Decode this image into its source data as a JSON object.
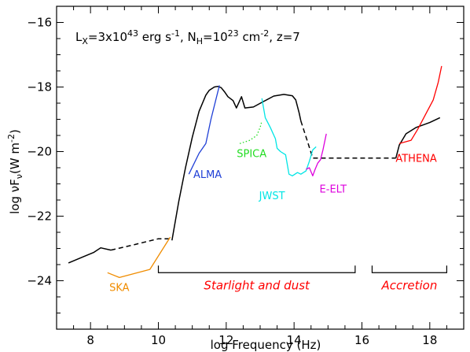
{
  "chart_data": {
    "type": "line",
    "xlabel_text": "log Frequency (Hz)",
    "ylabel_text": "log νF",
    "ylabel_sub": "ν",
    "ylabel_unit": "(W m",
    "ylabel_unit_sup": "-2",
    "ylabel_close": ")",
    "xlim": [
      7.0,
      19.0
    ],
    "ylim": [
      -25.5,
      -15.5
    ],
    "x_ticks": [
      8,
      10,
      12,
      14,
      16,
      18
    ],
    "y_ticks": [
      -24,
      -22,
      -20,
      -18,
      -16
    ],
    "annotation": {
      "lx": "L",
      "lx_sub": "X",
      "lx_val": "=3x10",
      "lx_exp": "43",
      "lx_unit": " erg s",
      "lx_unit_exp": "-1",
      "nh": ", N",
      "nh_sub": "H",
      "nh_val": "=10",
      "nh_exp": "23",
      "nh_unit": " cm",
      "nh_unit_exp": "-2",
      "z": ", z=7"
    },
    "sed_segments": [
      {
        "style": "solid",
        "color": "#000000",
        "points": [
          [
            7.35,
            -23.45
          ],
          [
            7.8,
            -23.25
          ],
          [
            8.1,
            -23.12
          ],
          [
            8.3,
            -22.98
          ],
          [
            8.6,
            -23.05
          ]
        ]
      },
      {
        "style": "dashed",
        "color": "#000000",
        "points": [
          [
            8.6,
            -23.05
          ],
          [
            9.3,
            -22.88
          ],
          [
            10.0,
            -22.7
          ],
          [
            10.4,
            -22.7
          ]
        ]
      },
      {
        "style": "solid",
        "color": "#000000",
        "points": [
          [
            10.4,
            -22.75
          ],
          [
            10.6,
            -21.55
          ],
          [
            10.8,
            -20.5
          ],
          [
            11.0,
            -19.55
          ],
          [
            11.2,
            -18.75
          ],
          [
            11.4,
            -18.25
          ],
          [
            11.5,
            -18.1
          ],
          [
            11.65,
            -18.0
          ],
          [
            11.75,
            -17.98
          ],
          [
            11.85,
            -18.02
          ],
          [
            11.95,
            -18.15
          ],
          [
            12.05,
            -18.3
          ],
          [
            12.2,
            -18.42
          ],
          [
            12.3,
            -18.65
          ],
          [
            12.45,
            -18.3
          ],
          [
            12.55,
            -18.65
          ],
          [
            12.8,
            -18.62
          ],
          [
            13.1,
            -18.45
          ],
          [
            13.4,
            -18.28
          ],
          [
            13.7,
            -18.23
          ],
          [
            13.95,
            -18.27
          ],
          [
            14.05,
            -18.4
          ],
          [
            14.15,
            -18.8
          ],
          [
            14.2,
            -19.05
          ]
        ]
      },
      {
        "style": "dashed",
        "color": "#000000",
        "points": [
          [
            14.2,
            -19.05
          ],
          [
            14.4,
            -19.7
          ],
          [
            14.55,
            -20.2
          ],
          [
            15.8,
            -20.2
          ],
          [
            17.0,
            -20.2
          ]
        ]
      },
      {
        "style": "solid",
        "color": "#000000",
        "points": [
          [
            17.0,
            -20.2
          ],
          [
            17.1,
            -19.8
          ],
          [
            17.3,
            -19.45
          ],
          [
            17.6,
            -19.25
          ],
          [
            18.0,
            -19.1
          ],
          [
            18.3,
            -18.95
          ]
        ]
      }
    ],
    "instruments": [
      {
        "name": "SKA",
        "color": "#f08c00",
        "style": "solid",
        "label_pos": [
          8.85,
          -24.2
        ],
        "points": [
          [
            8.5,
            -23.75
          ],
          [
            8.85,
            -23.9
          ],
          [
            9.75,
            -23.65
          ],
          [
            10.35,
            -22.65
          ]
        ]
      },
      {
        "name": "ALMA",
        "color": "#1f3fd6",
        "style": "solid",
        "label_pos": [
          11.45,
          -20.7
        ],
        "points": [
          [
            10.9,
            -20.7
          ],
          [
            11.2,
            -20.05
          ],
          [
            11.4,
            -19.75
          ],
          [
            11.55,
            -19.0
          ],
          [
            11.8,
            -17.95
          ]
        ]
      },
      {
        "name": "SPICA",
        "color": "#22dd22",
        "style": "dotted",
        "label_pos": [
          12.75,
          -20.05
        ],
        "points": [
          [
            12.4,
            -19.75
          ],
          [
            12.7,
            -19.65
          ],
          [
            12.9,
            -19.5
          ],
          [
            13.0,
            -19.25
          ],
          [
            13.05,
            -19.05
          ]
        ]
      },
      {
        "name": "JWST",
        "color": "#00e5e5",
        "style": "solid",
        "label_pos": [
          13.35,
          -21.35
        ],
        "points": [
          [
            13.05,
            -18.35
          ],
          [
            13.15,
            -18.95
          ],
          [
            13.3,
            -19.25
          ],
          [
            13.45,
            -19.6
          ],
          [
            13.5,
            -19.9
          ],
          [
            13.6,
            -20.0
          ],
          [
            13.75,
            -20.1
          ],
          [
            13.85,
            -20.7
          ],
          [
            13.95,
            -20.75
          ],
          [
            14.1,
            -20.65
          ],
          [
            14.2,
            -20.7
          ],
          [
            14.35,
            -20.6
          ],
          [
            14.45,
            -20.3
          ],
          [
            14.55,
            -19.95
          ],
          [
            14.65,
            -19.85
          ]
        ]
      },
      {
        "name": "E-ELT",
        "color": "#dd00dd",
        "style": "solid",
        "label_pos": [
          15.15,
          -21.15
        ],
        "points": [
          [
            14.35,
            -20.55
          ],
          [
            14.45,
            -20.5
          ],
          [
            14.55,
            -20.75
          ],
          [
            14.62,
            -20.55
          ],
          [
            14.7,
            -20.35
          ],
          [
            14.78,
            -20.25
          ],
          [
            14.85,
            -19.95
          ],
          [
            14.95,
            -19.45
          ]
        ]
      },
      {
        "name": "ATHENA",
        "color": "#ff0000",
        "style": "solid",
        "label_pos": [
          17.6,
          -20.2
        ],
        "points": [
          [
            17.1,
            -19.75
          ],
          [
            17.45,
            -19.65
          ],
          [
            17.65,
            -19.3
          ],
          [
            17.9,
            -18.8
          ],
          [
            18.1,
            -18.4
          ],
          [
            18.25,
            -17.85
          ],
          [
            18.35,
            -17.35
          ]
        ]
      }
    ],
    "regions": [
      {
        "label": "Starlight and dust",
        "color": "#ff0000",
        "range": [
          10.0,
          15.8
        ],
        "y": -23.75,
        "label_y": -24.15
      },
      {
        "label": "Accretion",
        "color": "#ff0000",
        "range": [
          16.3,
          18.5
        ],
        "y": -23.75,
        "label_y": -24.15
      }
    ]
  }
}
